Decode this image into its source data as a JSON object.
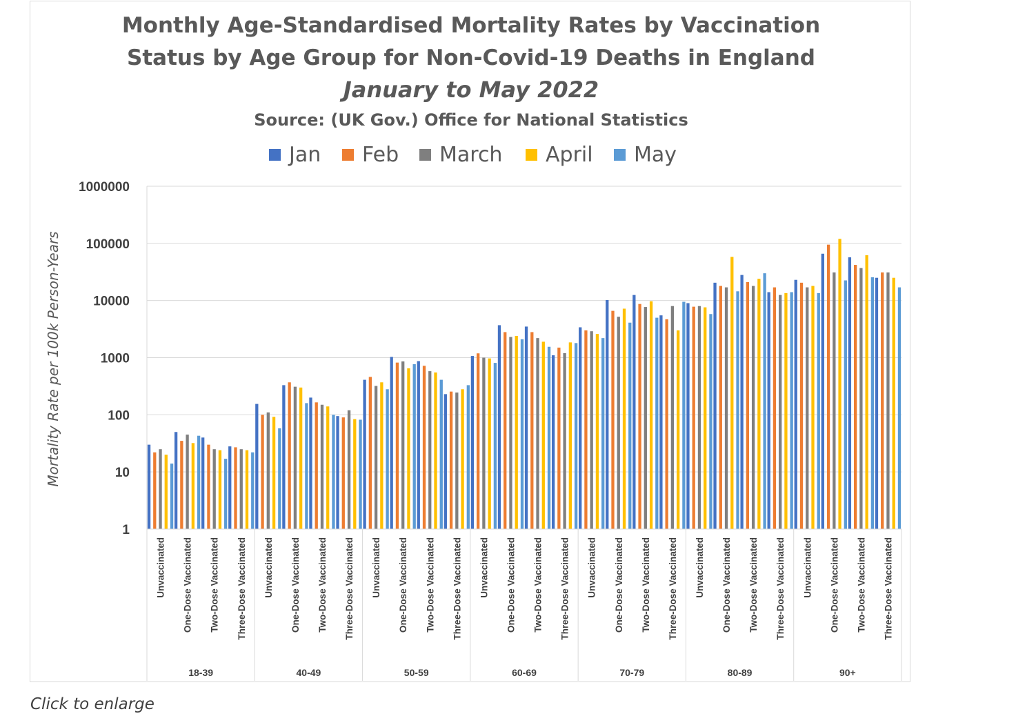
{
  "caption": "Click to enlarge",
  "chart_data": {
    "type": "bar",
    "title_line1": "Monthly Age-Standardised Mortality Rates by Vaccination",
    "title_line2": "Status by Age Group for Non-Covid-19 Deaths in England",
    "subtitle": "January to May 2022",
    "source": "Source: (UK Gov.) Office for National Statistics",
    "ylabel": "Mortality Rate per 100k Person-Years",
    "yscale": "log",
    "ylim": [
      1,
      1000000
    ],
    "yticks": [
      "1",
      "10",
      "100",
      "1000",
      "10000",
      "100000",
      "1000000"
    ],
    "grid": true,
    "legend_position": "top",
    "age_groups": [
      "18-39",
      "40-49",
      "50-59",
      "60-69",
      "70-79",
      "80-89",
      "90+"
    ],
    "statuses": [
      "Unvaccinated",
      "One-Dose Vaccinated",
      "Two-Dose Vaccinated",
      "Three-Dose Vaccinated"
    ],
    "series": [
      {
        "name": "Jan",
        "color": "#4472C4",
        "values": [
          30,
          50,
          40,
          28,
          155,
          330,
          200,
          95,
          410,
          1030,
          870,
          230,
          1070,
          3700,
          3500,
          1100,
          3400,
          10200,
          12500,
          5500,
          9000,
          20500,
          28000,
          14000,
          23000,
          66000,
          57000,
          25000
        ]
      },
      {
        "name": "Feb",
        "color": "#ED7D31",
        "values": [
          22,
          35,
          30,
          27,
          100,
          370,
          165,
          90,
          460,
          820,
          720,
          255,
          1190,
          2800,
          2800,
          1500,
          3000,
          6600,
          8700,
          4700,
          7800,
          18000,
          21000,
          17000,
          20500,
          95000,
          42000,
          31000
        ]
      },
      {
        "name": "March",
        "color": "#7F7F7F",
        "values": [
          25,
          45,
          25,
          25,
          110,
          310,
          150,
          120,
          320,
          860,
          580,
          245,
          1000,
          2300,
          2200,
          1200,
          2900,
          5200,
          7700,
          8000,
          8000,
          17000,
          18000,
          12500,
          17000,
          31000,
          37000,
          31000
        ]
      },
      {
        "name": "April",
        "color": "#FFC000",
        "values": [
          20,
          32,
          24,
          24,
          92,
          300,
          140,
          84,
          370,
          650,
          550,
          280,
          970,
          2400,
          1900,
          1850,
          2600,
          7200,
          9700,
          3000,
          7600,
          58000,
          24000,
          13500,
          18000,
          120000,
          62000,
          25000
        ]
      },
      {
        "name": "May",
        "color": "#5B9BD5",
        "values": [
          14,
          43,
          17,
          22,
          58,
          160,
          100,
          82,
          280,
          770,
          410,
          330,
          810,
          2100,
          1550,
          1800,
          2200,
          4100,
          5000,
          9500,
          5800,
          14500,
          30000,
          14000,
          13500,
          22500,
          25500,
          17000
        ]
      }
    ]
  }
}
